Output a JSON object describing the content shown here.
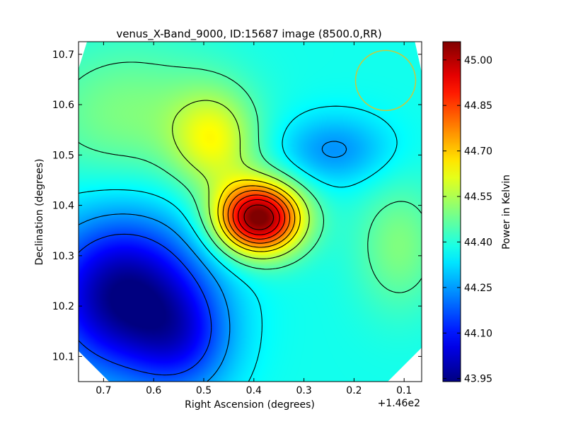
{
  "chart_data": {
    "type": "heatmap",
    "title": "venus_X-Band_9000, ID:15687 image (8500.0,RR)",
    "xlabel": "Right Ascension (degrees)",
    "ylabel": "Declination (degrees)",
    "x_offset_label": "+1.46e2",
    "x_reversed": true,
    "xlim": [
      0.75,
      0.065
    ],
    "ylim": [
      10.05,
      10.725
    ],
    "x_ticks": [
      {
        "value": 0.7,
        "label": "0.7"
      },
      {
        "value": 0.6,
        "label": "0.6"
      },
      {
        "value": 0.5,
        "label": "0.5"
      },
      {
        "value": 0.4,
        "label": "0.4"
      },
      {
        "value": 0.3,
        "label": "0.3"
      },
      {
        "value": 0.2,
        "label": "0.2"
      },
      {
        "value": 0.1,
        "label": "0.1"
      }
    ],
    "y_ticks": [
      {
        "value": 10.1,
        "label": "10.1"
      },
      {
        "value": 10.2,
        "label": "10.2"
      },
      {
        "value": 10.3,
        "label": "10.3"
      },
      {
        "value": 10.4,
        "label": "10.4"
      },
      {
        "value": 10.5,
        "label": "10.5"
      },
      {
        "value": 10.6,
        "label": "10.6"
      },
      {
        "value": 10.7,
        "label": "10.7"
      }
    ],
    "colorbar": {
      "label": "Power in Kelvin",
      "range": [
        43.94,
        45.06
      ],
      "colormap": "jet",
      "ticks": [
        {
          "value": 43.95,
          "label": "43.95"
        },
        {
          "value": 44.1,
          "label": "44.10"
        },
        {
          "value": 44.25,
          "label": "44.25"
        },
        {
          "value": 44.4,
          "label": "44.40"
        },
        {
          "value": 44.55,
          "label": "44.55"
        },
        {
          "value": 44.7,
          "label": "44.70"
        },
        {
          "value": 44.85,
          "label": "44.85"
        },
        {
          "value": 45.0,
          "label": "45.00"
        }
      ]
    },
    "base_level": 44.38,
    "field_components": [
      {
        "ra": 0.39,
        "dec": 10.375,
        "amplitude": 0.7,
        "sigma_ra": 0.06,
        "sigma_dec": 0.05,
        "kind": "peak"
      },
      {
        "ra": 0.48,
        "dec": 10.53,
        "amplitude": 0.22,
        "sigma_ra": 0.06,
        "sigma_dec": 0.07,
        "kind": "ridge"
      },
      {
        "ra": 0.65,
        "dec": 10.58,
        "amplitude": 0.12,
        "sigma_ra": 0.13,
        "sigma_dec": 0.1,
        "kind": "plateau"
      },
      {
        "ra": 0.66,
        "dec": 10.22,
        "amplitude": -0.44,
        "sigma_ra": 0.11,
        "sigma_dec": 0.11,
        "kind": "trough"
      },
      {
        "ra": 0.54,
        "dec": 10.13,
        "amplitude": -0.18,
        "sigma_ra": 0.07,
        "sigma_dec": 0.08,
        "kind": "trough"
      },
      {
        "ra": 0.24,
        "dec": 10.51,
        "amplitude": -0.14,
        "sigma_ra": 0.08,
        "sigma_dec": 0.05,
        "kind": "low"
      },
      {
        "ra": 0.11,
        "dec": 10.32,
        "amplitude": 0.12,
        "sigma_ra": 0.06,
        "sigma_dec": 0.09,
        "kind": "bump"
      }
    ],
    "contour_levels": [
      44.15,
      44.25,
      44.35,
      44.45,
      44.55,
      44.65,
      44.72,
      44.79,
      44.86,
      44.93,
      45.0
    ],
    "beam_circle": {
      "ra": 0.137,
      "dec": 10.648,
      "radius_ra": 0.06,
      "color": "#c8c83c"
    },
    "grid": false,
    "legend": "colorbar-right"
  }
}
